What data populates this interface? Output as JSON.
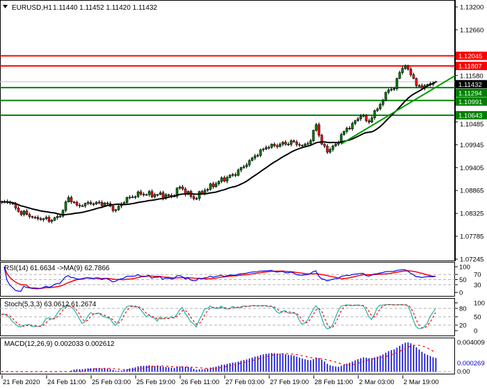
{
  "header": {
    "symbol_tf": "EURUSD,H1",
    "ohlc": "1.11440 1.11452 1.11420 1.11432",
    "menu_icon": "triangle-down-icon"
  },
  "chart_data": {
    "type": "candlestick",
    "symbol": "EURUSD",
    "timeframe": "H1",
    "ylim": [
      1.07245,
      1.132
    ],
    "last_bar": {
      "open": 1.1144,
      "high": 1.11452,
      "low": 1.1142,
      "close": 1.11432
    },
    "close_path": [
      {
        "time": "21 Feb 19:00",
        "close": 1.0859
      },
      {
        "time": "21 Feb 22:00",
        "close": 1.0857
      },
      {
        "time": "24 Feb 01:00",
        "close": 1.0837
      },
      {
        "time": "24 Feb 07:00",
        "close": 1.0823
      },
      {
        "time": "24 Feb 13:00",
        "close": 1.0816
      },
      {
        "time": "24 Feb 16:00",
        "close": 1.0826
      },
      {
        "time": "24 Feb 19:00",
        "close": 1.087
      },
      {
        "time": "24 Feb 22:00",
        "close": 1.0852
      },
      {
        "time": "25 Feb 03:00",
        "close": 1.0855
      },
      {
        "time": "25 Feb 08:00",
        "close": 1.0857
      },
      {
        "time": "25 Feb 12:00",
        "close": 1.0841
      },
      {
        "time": "25 Feb 16:00",
        "close": 1.087
      },
      {
        "time": "25 Feb 21:00",
        "close": 1.0878
      },
      {
        "time": "26 Feb 03:00",
        "close": 1.0877
      },
      {
        "time": "26 Feb 08:00",
        "close": 1.0873
      },
      {
        "time": "26 Feb 11:00",
        "close": 1.0895
      },
      {
        "time": "26 Feb 16:00",
        "close": 1.0867
      },
      {
        "time": "26 Feb 20:00",
        "close": 1.0887
      },
      {
        "time": "27 Feb 01:00",
        "close": 1.0908
      },
      {
        "time": "27 Feb 06:00",
        "close": 1.0924
      },
      {
        "time": "27 Feb 11:00",
        "close": 1.0947
      },
      {
        "time": "27 Feb 14:00",
        "close": 1.0968
      },
      {
        "time": "27 Feb 18:00",
        "close": 1.0988
      },
      {
        "time": "27 Feb 23:00",
        "close": 1.0996
      },
      {
        "time": "28 Feb 04:00",
        "close": 1.1001
      },
      {
        "time": "28 Feb 07:00",
        "close": 1.0993
      },
      {
        "time": "28 Feb 10:00",
        "close": 1.1004
      },
      {
        "time": "28 Feb 12:00",
        "close": 1.1042
      },
      {
        "time": "28 Feb 14:00",
        "close": 1.0996
      },
      {
        "time": "28 Feb 16:00",
        "close": 1.0977
      },
      {
        "time": "28 Feb 19:00",
        "close": 1.0996
      },
      {
        "time": "28 Feb 22:00",
        "close": 1.1026
      },
      {
        "time": "2 Mar 01:00",
        "close": 1.1045
      },
      {
        "time": "2 Mar 04:00",
        "close": 1.1062
      },
      {
        "time": "2 Mar 07:00",
        "close": 1.1048
      },
      {
        "time": "2 Mar 09:00",
        "close": 1.1075
      },
      {
        "time": "2 Mar 12:00",
        "close": 1.1099
      },
      {
        "time": "2 Mar 14:00",
        "close": 1.1124
      },
      {
        "time": "2 Mar 16:00",
        "close": 1.1127
      },
      {
        "time": "2 Mar 18:00",
        "close": 1.1165
      },
      {
        "time": "2 Mar 20:00",
        "close": 1.1181
      },
      {
        "time": "2 Mar 22:00",
        "close": 1.116
      },
      {
        "time": "3 Mar 00:00",
        "close": 1.1134
      },
      {
        "time": "3 Mar 03:00",
        "close": 1.1134
      },
      {
        "time": "3 Mar 05:00",
        "close": 1.1139
      },
      {
        "time": "3 Mar 07:00",
        "close": 1.11432
      }
    ],
    "price_ticks": [
      "1.13200",
      "1.12660",
      "1.11580",
      "1.10485",
      "1.09945",
      "1.09405",
      "1.08865",
      "1.08325",
      "1.07785",
      "1.07245"
    ],
    "time_labels": [
      "21 Feb 2020",
      "24 Feb 11:00",
      "25 Feb 03:00",
      "25 Feb 19:00",
      "26 Feb 11:00",
      "27 Feb 03:00",
      "27 Feb 19:00",
      "28 Feb 11:00",
      "2 Mar 03:00",
      "2 Mar 19:00"
    ],
    "moving_average": {
      "color": "#000000"
    },
    "horizontal_levels": [
      {
        "price": "1.12045",
        "color": "#ff0000"
      },
      {
        "price": "1.11807",
        "color": "#ff0000"
      },
      {
        "price": "1.11294",
        "color": "#008000"
      },
      {
        "price": "1.10991",
        "color": "#008000"
      },
      {
        "price": "1.10643",
        "color": "#008000"
      }
    ],
    "trendline": {
      "points": [
        [
          "28 Feb 21:00",
          1.0996
        ],
        [
          "3 Mar 07:00",
          1.113
        ]
      ],
      "color": "#009a00"
    },
    "current_price": "1.11432",
    "colors": {
      "bull": "#008000",
      "bear": "#ff0000",
      "wick": "#000000"
    }
  },
  "indicators": {
    "rsi": {
      "label": "RSI(14) 61.6634  ->MA(9) 62.7866",
      "levels": [
        "100",
        "70",
        "50",
        "30",
        "0"
      ],
      "line_color": "#0000ff",
      "ma_color": "#ff0000"
    },
    "stoch": {
      "label": "Stoch(5,3,3) 63.0612 61.2674",
      "levels": [
        "100",
        "80",
        "50",
        "20",
        "0"
      ],
      "main_color": "#20b2aa",
      "signal_color": "#ff0000"
    },
    "macd": {
      "label": "MACD(12,26,9) 0.002033 0.002612",
      "scale_top": "0.004009",
      "scale_zero": "0.00",
      "scale_current": "0.000269",
      "hist_color": "#0000cc",
      "signal_color": "#ff0000"
    }
  }
}
